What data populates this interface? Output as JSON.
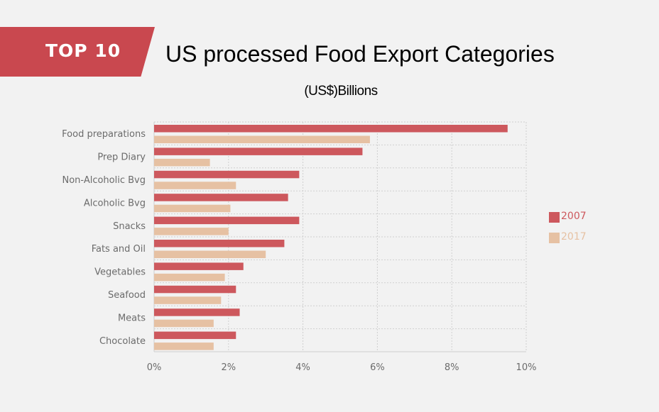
{
  "banner": {
    "label": "TOP 10"
  },
  "header": {
    "title": "US processed Food Export Categories",
    "subtitle": "(US$)Billions"
  },
  "colors": {
    "accent": "#c9484f",
    "series_2007": "#cd585d",
    "series_2017": "#e6c1a3",
    "grid": "#cfcfcf",
    "text": "#6b6b6b"
  },
  "chart_data": {
    "type": "bar",
    "orientation": "horizontal",
    "categories": [
      "Food preparations",
      "Prep Diary",
      "Non-Alcoholic Bvg",
      "Alcoholic Bvg",
      "Snacks",
      "Fats and Oil",
      "Vegetables",
      "Seafood",
      "Meats",
      "Chocolate"
    ],
    "series": [
      {
        "name": "2007",
        "color": "#cd585d",
        "values": [
          9.5,
          5.6,
          3.9,
          3.6,
          3.9,
          3.5,
          2.4,
          2.2,
          2.3,
          2.2
        ]
      },
      {
        "name": "2017",
        "color": "#e6c1a3",
        "values": [
          5.8,
          1.5,
          2.2,
          2.05,
          2.0,
          3.0,
          1.9,
          1.8,
          1.6,
          1.6
        ]
      }
    ],
    "x_ticks": [
      "0%",
      "2%",
      "4%",
      "6%",
      "8%",
      "10%"
    ],
    "xlim": [
      0,
      10
    ],
    "grid": true,
    "legend_position": "right"
  }
}
